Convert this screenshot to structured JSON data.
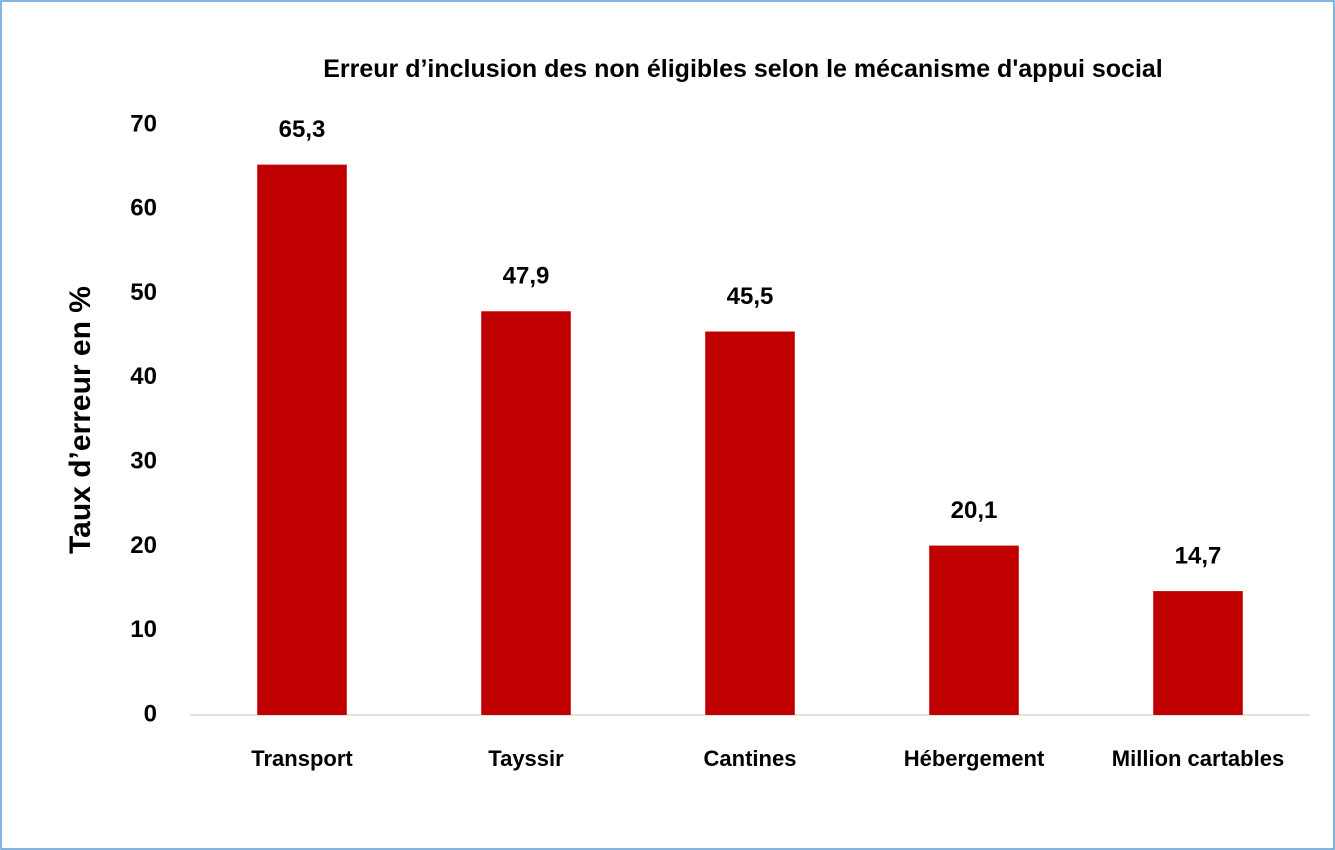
{
  "chart_data": {
    "type": "bar",
    "title": "Erreur d’inclusion des non éligibles selon le mécanisme d'appui social",
    "y_label": "Taux d’erreur en %",
    "categories": [
      "Transport",
      "Tayssir",
      "Cantines",
      "Hébergement",
      "Million cartables"
    ],
    "values": [
      65.3,
      47.9,
      45.5,
      20.1,
      14.7
    ],
    "value_labels": [
      "65,3",
      "47,9",
      "45,5",
      "20,1",
      "14,7"
    ],
    "color": "#c00000",
    "ylim": [
      0,
      70
    ],
    "yticks": [
      0,
      10,
      20,
      30,
      40,
      50,
      60,
      70
    ],
    "grid": false
  }
}
